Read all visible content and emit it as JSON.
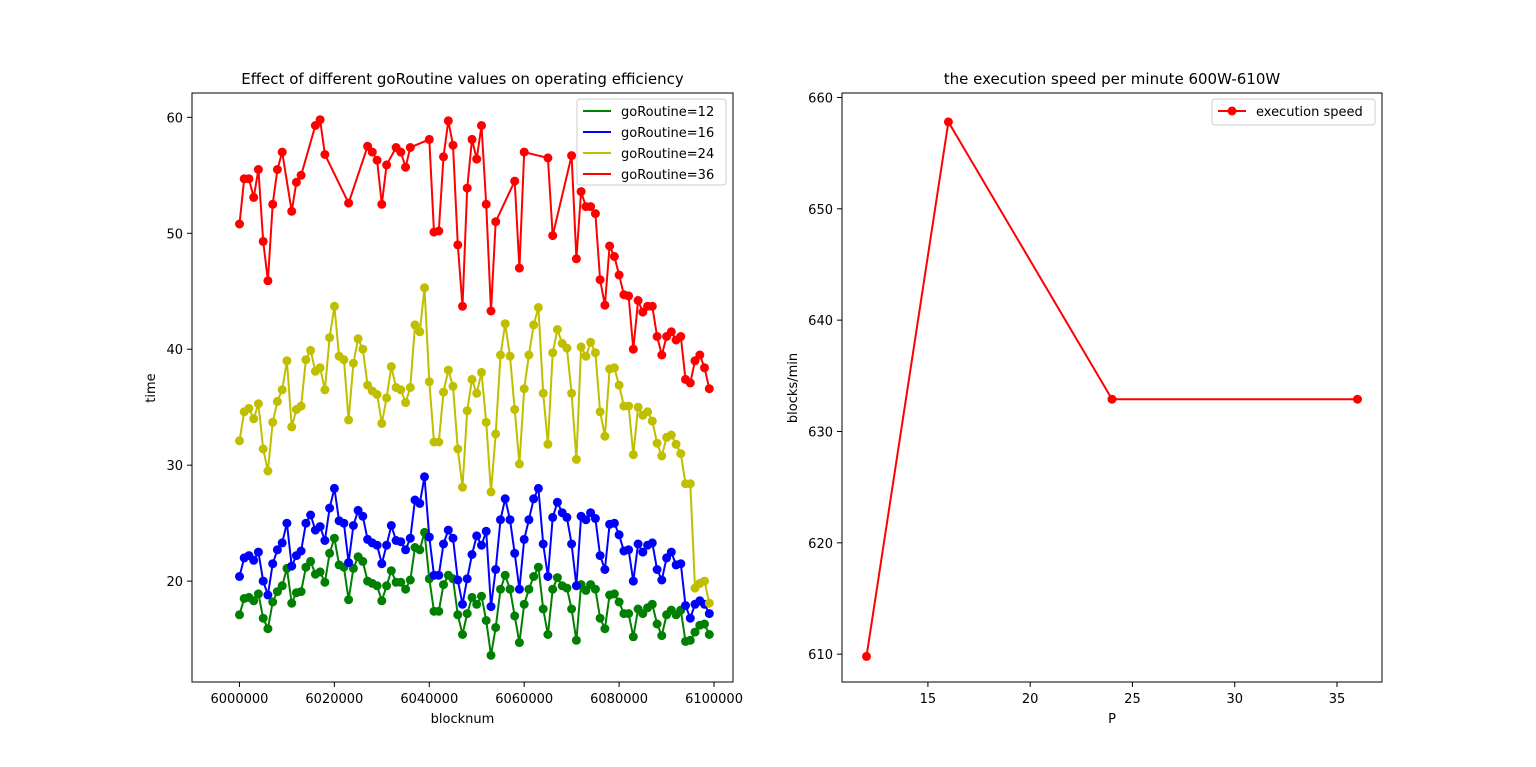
{
  "chart_data": [
    {
      "type": "line",
      "title": "Effect of different goRoutine values on operating efficiency",
      "xlabel": "blocknum",
      "ylabel": "time",
      "xlim": [
        5990000,
        6104000
      ],
      "ylim": [
        11.3,
        62.1
      ],
      "xticks": [
        6000000,
        6020000,
        6040000,
        6060000,
        6080000,
        6100000
      ],
      "yticks": [
        20,
        30,
        40,
        50,
        60
      ],
      "marker": "circle",
      "legend_position": "top-right",
      "series": [
        {
          "name": "goRoutine=12",
          "color": "#008000",
          "values": [
            17.1,
            18.5,
            18.6,
            18.3,
            18.9,
            16.8,
            15.9,
            18.2,
            19.1,
            19.6,
            21.1,
            18.1,
            19.0,
            19.1,
            21.2,
            21.7,
            20.6,
            20.8,
            19.9,
            22.4,
            23.7,
            21.4,
            21.2,
            18.4,
            21.1,
            22.1,
            21.7,
            20.0,
            19.8,
            19.6,
            18.3,
            19.6,
            20.9,
            19.9,
            19.9,
            19.3,
            20.1,
            22.9,
            22.7,
            24.2,
            20.2,
            17.4,
            17.4,
            19.7,
            20.5,
            20.2,
            17.1,
            15.4,
            17.2,
            18.6,
            18.0,
            18.7,
            16.6,
            13.6,
            16.0,
            19.3,
            20.5,
            19.3,
            17.0,
            14.7,
            18.0,
            19.3,
            20.4,
            21.2,
            17.6,
            15.4,
            19.3,
            20.3,
            19.6,
            19.4,
            17.6,
            14.9,
            19.7,
            19.2,
            19.7,
            19.3,
            16.8,
            15.9,
            18.8,
            18.9,
            18.2,
            17.2,
            17.2,
            15.2,
            17.6,
            17.2,
            17.7,
            18.0,
            16.3,
            15.3,
            17.1,
            17.5,
            17.1,
            17.5,
            14.8,
            14.9,
            15.6,
            16.2,
            16.3,
            15.4
          ]
        },
        {
          "name": "goRoutine=16",
          "color": "#0000ff",
          "values": [
            20.4,
            22.0,
            22.2,
            21.8,
            22.5,
            20.0,
            18.8,
            21.5,
            22.7,
            23.3,
            25.0,
            21.3,
            22.2,
            22.6,
            25.0,
            25.7,
            24.4,
            24.7,
            23.5,
            26.3,
            28.0,
            25.2,
            25.0,
            21.6,
            24.8,
            26.1,
            25.6,
            23.6,
            23.3,
            23.1,
            21.5,
            23.1,
            24.8,
            23.5,
            23.4,
            22.7,
            23.7,
            27.0,
            26.7,
            29.0,
            23.8,
            20.5,
            20.5,
            23.2,
            24.4,
            23.7,
            20.1,
            18.0,
            20.2,
            22.3,
            23.9,
            23.1,
            24.3,
            17.8,
            21.0,
            25.3,
            27.1,
            25.3,
            22.4,
            19.3,
            23.6,
            25.3,
            27.1,
            28.0,
            23.2,
            20.4,
            25.5,
            26.8,
            25.9,
            25.5,
            23.2,
            19.6,
            25.6,
            25.3,
            25.9,
            25.4,
            22.2,
            21.0,
            24.9,
            25.0,
            24.0,
            22.6,
            22.7,
            20.0,
            23.2,
            22.5,
            23.1,
            23.3,
            21.0,
            20.1,
            22.0,
            22.5,
            21.4,
            21.5,
            17.9,
            16.8,
            18.0,
            18.3,
            18.0,
            17.2
          ]
        },
        {
          "name": "goRoutine=24",
          "color": "#bfbf00",
          "values": [
            32.1,
            34.6,
            34.9,
            34.0,
            35.3,
            31.4,
            29.5,
            33.7,
            35.5,
            36.5,
            39.0,
            33.3,
            34.8,
            35.1,
            39.1,
            39.9,
            38.1,
            38.4,
            36.5,
            41.0,
            43.7,
            39.4,
            39.1,
            33.9,
            38.8,
            40.9,
            40.0,
            36.9,
            36.4,
            36.1,
            33.6,
            35.8,
            38.5,
            36.7,
            36.5,
            35.4,
            36.7,
            42.1,
            41.5,
            45.3,
            37.2,
            32.0,
            32.0,
            36.3,
            38.2,
            36.8,
            31.4,
            28.1,
            34.7,
            37.4,
            36.2,
            38.0,
            33.7,
            27.7,
            32.7,
            39.5,
            42.2,
            39.4,
            34.8,
            30.1,
            36.6,
            39.5,
            42.1,
            43.6,
            36.2,
            31.8,
            39.7,
            41.7,
            40.5,
            40.1,
            36.2,
            30.5,
            40.2,
            39.4,
            40.6,
            39.7,
            34.6,
            32.5,
            38.3,
            38.4,
            36.9,
            35.1,
            35.1,
            30.9,
            35.0,
            34.3,
            34.6,
            33.8,
            31.9,
            30.8,
            32.4,
            32.6,
            31.8,
            31.0,
            28.4,
            28.4,
            19.4,
            19.8,
            20.0,
            18.1
          ]
        },
        {
          "name": "goRoutine=36",
          "color": "#ff0000",
          "values": [
            50.8,
            54.7,
            54.7,
            53.1,
            55.5,
            49.3,
            45.9,
            52.5,
            55.5,
            57.0,
            51.9,
            54.4,
            55.0,
            59.3,
            59.8,
            56.8,
            52.6,
            57.5,
            57.0,
            56.3,
            52.5,
            55.9,
            57.4,
            57.0,
            55.7,
            57.4,
            58.1,
            50.1,
            50.2,
            56.6,
            59.7,
            57.6,
            49.0,
            43.7,
            53.9,
            58.1,
            56.4,
            59.3,
            52.5,
            43.3,
            51.0,
            54.5,
            47.0,
            57.0,
            56.5,
            49.8,
            56.7,
            47.8,
            53.6,
            52.3,
            52.3,
            51.7,
            46.0,
            43.8,
            48.9,
            48.0,
            46.4,
            44.7,
            44.6,
            40.0,
            44.2,
            43.2,
            43.7,
            43.7,
            41.1,
            39.5,
            41.1,
            41.5,
            40.8,
            41.1,
            37.4,
            37.1,
            39.0,
            39.5,
            38.4,
            36.6
          ],
          "x": [
            6000000,
            6001000,
            6002000,
            6003000,
            6004000,
            6005000,
            6006000,
            6007000,
            6008000,
            6009000,
            6011000,
            6012000,
            6013000,
            6016000,
            6017000,
            6018000,
            6023000,
            6027000,
            6028000,
            6029000,
            6030000,
            6031000,
            6033000,
            6034000,
            6035000,
            6036000,
            6040000,
            6041000,
            6042000,
            6043000,
            6044000,
            6045000,
            6046000,
            6047000,
            6048000,
            6049000,
            6050000,
            6051000,
            6052000,
            6053000,
            6054000,
            6058000,
            6059000,
            6060000,
            6065000,
            6066000,
            6070000,
            6071000,
            6072000,
            6073000,
            6074000,
            6075000,
            6076000,
            6077000,
            6078000,
            6079000,
            6080000,
            6081000,
            6082000,
            6083000,
            6084000,
            6085000,
            6086000,
            6087000,
            6088000,
            6089000,
            6090000,
            6091000,
            6092000,
            6093000,
            6094000,
            6095000,
            6096000,
            6097000,
            6098000,
            6099000
          ]
        }
      ],
      "x_shared": {
        "start": 6000000,
        "step": 1000,
        "count": 100
      }
    },
    {
      "type": "line",
      "title": "the execution speed per minute 600W-610W",
      "xlabel": "P",
      "ylabel": "blocks/min",
      "xlim": [
        10.8,
        37.2
      ],
      "ylim": [
        607.5,
        660.4
      ],
      "xticks": [
        15,
        20,
        25,
        30,
        35
      ],
      "yticks": [
        610,
        620,
        630,
        640,
        650,
        660
      ],
      "marker": "circle",
      "legend_position": "top-right",
      "series": [
        {
          "name": "execution speed",
          "color": "#ff0000",
          "x": [
            12,
            16,
            24,
            36
          ],
          "values": [
            609.8,
            657.8,
            632.9,
            632.9
          ]
        }
      ]
    }
  ]
}
